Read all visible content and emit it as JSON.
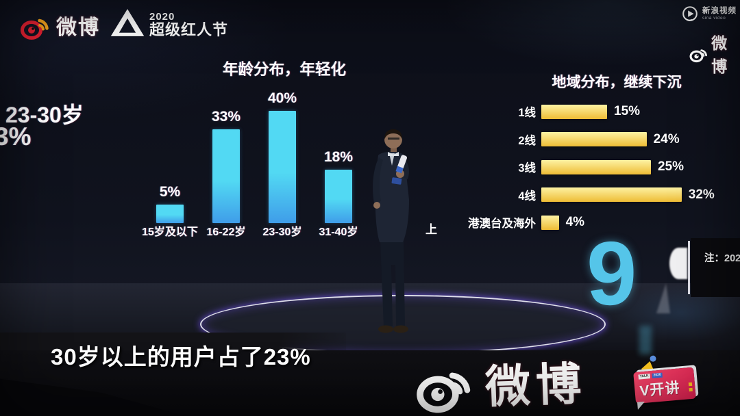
{
  "header": {
    "weibo_logo_text": "微博",
    "festival_year": "2020",
    "festival_name": "超级红人节",
    "sina_video_name": "新浪视频",
    "sina_video_sub": "sina video",
    "weibo_corner_text": "微博"
  },
  "side_screen": {
    "label": "23-30岁",
    "value": "3%"
  },
  "chart_data": [
    {
      "type": "bar",
      "orientation": "vertical",
      "title": "年龄分布，年轻化",
      "categories": [
        "15岁及以下",
        "16-22岁",
        "23-30岁",
        "31-40岁"
      ],
      "values": [
        5,
        33,
        40,
        18
      ],
      "value_labels": [
        "5%",
        "33%",
        "40%",
        "18%"
      ],
      "unit": "%",
      "partial_hidden_category": "上",
      "legend_position": "none",
      "grid": "off"
    },
    {
      "type": "bar",
      "orientation": "horizontal",
      "title": "地域分布，继续下沉",
      "categories": [
        "1线",
        "2线",
        "3线",
        "4线",
        "港澳台及海外"
      ],
      "values": [
        15,
        24,
        25,
        32,
        4
      ],
      "value_labels": [
        "15%",
        "24%",
        "25%",
        "32%",
        "4%"
      ],
      "unit": "%",
      "legend_position": "none",
      "grid": "off"
    }
  ],
  "background": {
    "big_digit": "9",
    "note_text": "注：202"
  },
  "subtitle": "30岁以上的用户占了23%",
  "stage_logo": {
    "text": "微博"
  },
  "vtalk_badge": {
    "title": "V开讲",
    "tag1": "TALK",
    "tag2": "2020"
  },
  "colors": {
    "age_bar_top": "#52d9f3",
    "age_bar_bottom": "#3f9de9",
    "region_bar_top": "#fdf2a3",
    "region_bar_bottom": "#eebc35",
    "weibo_red": "#e62132",
    "weibo_orange": "#f5a31d",
    "big_digit_cyan": "#55c5e9",
    "badge_pink": "#d81f4e",
    "badge_yellow": "#f7c21e"
  }
}
